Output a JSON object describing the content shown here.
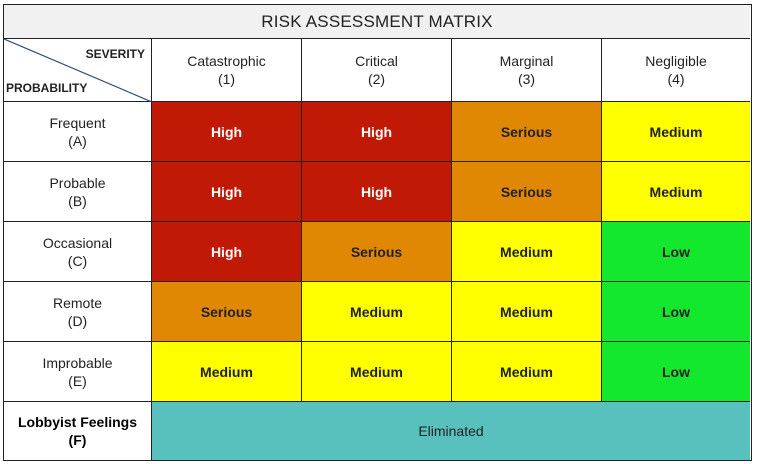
{
  "title": "RISK ASSESSMENT MATRIX",
  "corner": {
    "severity_label": "SEVERITY",
    "probability_label": "PROBABILITY"
  },
  "severity_columns": [
    {
      "name": "Catastrophic",
      "code": "(1)"
    },
    {
      "name": "Critical",
      "code": "(2)"
    },
    {
      "name": "Marginal",
      "code": "(3)"
    },
    {
      "name": "Negligible",
      "code": "(4)"
    }
  ],
  "probability_rows": [
    {
      "name": "Frequent",
      "code": "(A)",
      "cells": [
        "High",
        "High",
        "Serious",
        "Medium"
      ]
    },
    {
      "name": "Probable",
      "code": "(B)",
      "cells": [
        "High",
        "High",
        "Serious",
        "Medium"
      ]
    },
    {
      "name": "Occasional",
      "code": "(C)",
      "cells": [
        "High",
        "Serious",
        "Medium",
        "Low"
      ]
    },
    {
      "name": "Remote",
      "code": "(D)",
      "cells": [
        "Serious",
        "Medium",
        "Medium",
        "Low"
      ]
    },
    {
      "name": "Improbable",
      "code": "(E)",
      "cells": [
        "Medium",
        "Medium",
        "Medium",
        "Low"
      ]
    }
  ],
  "special_row": {
    "name": "Lobbyist Feelings",
    "code": "(F)",
    "value": "Eliminated"
  },
  "colors": {
    "High": "#c01a06",
    "Serious": "#e08703",
    "Medium": "#ffff00",
    "Low": "#13e82c",
    "Eliminated": "#58c1bd"
  }
}
